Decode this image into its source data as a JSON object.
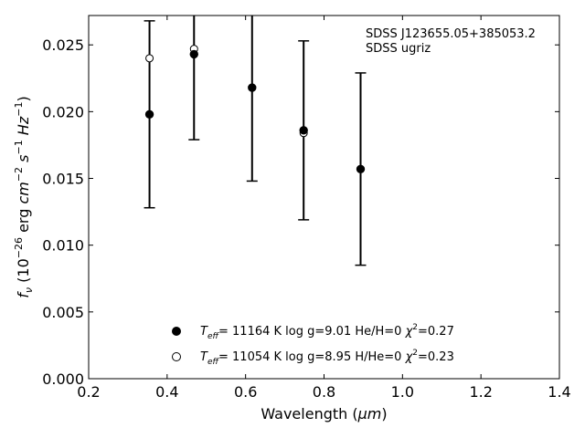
{
  "chart_data": {
    "type": "scatter",
    "xlabel": "Wavelength (",
    "xlabel_unit": "μm",
    "xlabel_close": ")",
    "ylabel_prefix": "f",
    "ylabel_sub": "ν",
    "ylabel_mid": " (10",
    "ylabel_exp1": "−26",
    "ylabel_unit1": " erg ",
    "ylabel_cm": "cm",
    "ylabel_exp2": "−2",
    "ylabel_s": "s",
    "ylabel_exp3": "−1",
    "ylabel_hz": "Hz",
    "ylabel_exp4": "−1",
    "ylabel_close": ")",
    "xlim": [
      0.2,
      1.4
    ],
    "ylim": [
      0.0,
      0.0272
    ],
    "xticks": [
      0.2,
      0.4,
      0.6,
      0.8,
      1.0,
      1.2,
      1.4
    ],
    "xtick_labels": [
      "0.2",
      "0.4",
      "0.6",
      "0.8",
      "1.0",
      "1.2",
      "1.4"
    ],
    "yticks": [
      0.0,
      0.005,
      0.01,
      0.015,
      0.02,
      0.025
    ],
    "ytick_labels": [
      "0.000",
      "0.005",
      "0.010",
      "0.015",
      "0.020",
      "0.025"
    ],
    "annotation_lines": [
      "SDSS J123655.05+385053.2",
      "SDSS ugriz"
    ],
    "grid": false,
    "legend_placement": "lower-center",
    "observed": {
      "marker": "filled-circle",
      "x": [
        0.3551,
        0.4686,
        0.6166,
        0.748,
        0.8932
      ],
      "y": [
        0.0198,
        0.0243,
        0.0218,
        0.0186,
        0.0157
      ],
      "yerr": [
        0.007,
        0.0064,
        0.007,
        0.0067,
        0.0072
      ],
      "legend": {
        "teff": "T",
        "teff_sub": "eff",
        "rest": "= 11164 K  log g=9.01  He/H=0  ",
        "chi": "χ",
        "chi_exp": "2",
        "chi_val": "=0.27"
      }
    },
    "model": {
      "marker": "open-circle",
      "x": [
        0.3551,
        0.4686,
        0.748
      ],
      "y": [
        0.024,
        0.0247,
        0.0184
      ],
      "legend": {
        "teff": "T",
        "teff_sub": "eff",
        "rest": "= 11054 K  log g=8.95  H/He=0  ",
        "chi": "χ",
        "chi_exp": "2",
        "chi_val": "=0.23"
      }
    }
  }
}
